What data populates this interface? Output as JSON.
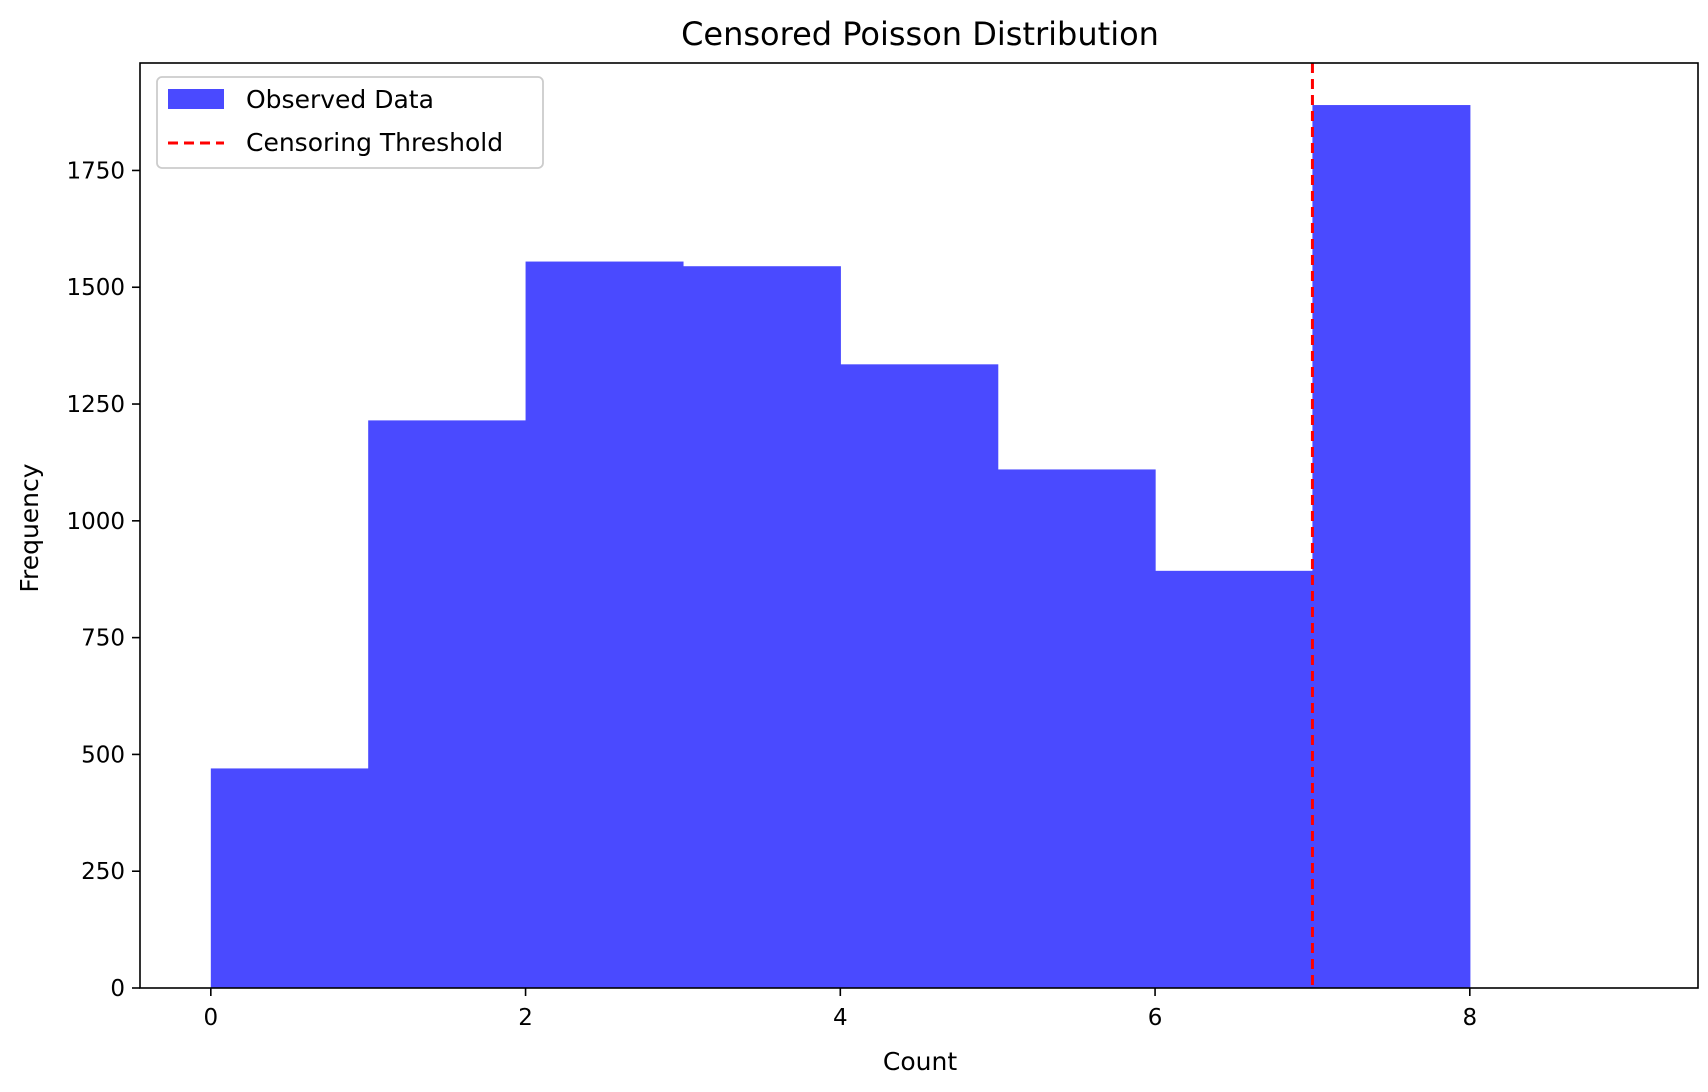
{
  "chart_data": {
    "type": "bar",
    "title": "Censored Poisson Distribution",
    "xlabel": "Count",
    "ylabel": "Frequency",
    "xlim": [
      -0.45,
      9.45
    ],
    "ylim": [
      0,
      1980
    ],
    "bin_edges": [
      0,
      1,
      2,
      3,
      4,
      5,
      6,
      7,
      8
    ],
    "values": [
      470,
      1215,
      1555,
      1545,
      1335,
      1110,
      893,
      1890
    ],
    "x_ticks": [
      0,
      2,
      4,
      6,
      8
    ],
    "y_ticks": [
      0,
      250,
      500,
      750,
      1000,
      1250,
      1500,
      1750
    ],
    "threshold": 7,
    "series": [
      {
        "name": "Observed Data",
        "color": "#4a4aff",
        "opacity": 1
      }
    ],
    "threshold_series": {
      "name": "Censoring Threshold",
      "color": "#ff0000",
      "style": "dashed"
    },
    "legend": {
      "placement": "top-left",
      "entries": [
        {
          "label": "Observed Data",
          "marker": "patch",
          "color": "#4a4aff"
        },
        {
          "label": "Censoring Threshold",
          "marker": "dashed-line",
          "color": "#ff0000"
        }
      ]
    },
    "grid": false
  }
}
